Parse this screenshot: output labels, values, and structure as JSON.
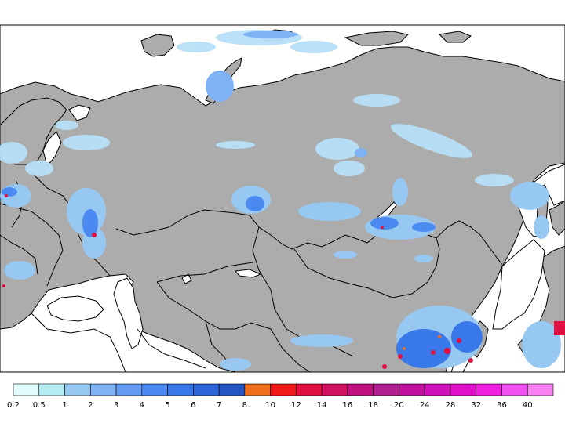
{
  "legend": {
    "labels": [
      "0.2",
      "0.5",
      "1",
      "2",
      "3",
      "4",
      "5",
      "6",
      "7",
      "8",
      "10",
      "12",
      "14",
      "16",
      "18",
      "20",
      "24",
      "28",
      "32",
      "36",
      "40"
    ],
    "colors": [
      "#e2fdfd",
      "#b4ecf2",
      "#97c8f2",
      "#7eb2f5",
      "#639cf0",
      "#4b8af0",
      "#3978e8",
      "#2b65d8",
      "#2455c4",
      "#f07020",
      "#f01818",
      "#e01040",
      "#d01060",
      "#c01080",
      "#b02090",
      "#c010a0",
      "#d010b8",
      "#e010c8",
      "#f020e0",
      "#f050f0",
      "#f880f0"
    ]
  },
  "colors": {
    "land": "#acacac",
    "water": "#ffffff",
    "border": "#000000",
    "precip_light": "#b8e0f8",
    "precip_mid": "#7eb2f5",
    "precip_heavy": "#2b65d8",
    "precip_extreme": "#e01040"
  }
}
